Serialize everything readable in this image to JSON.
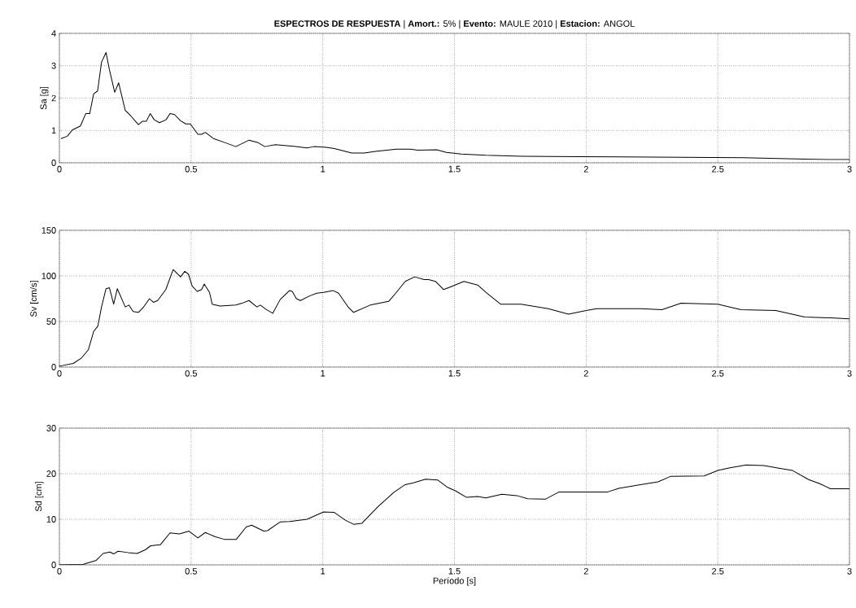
{
  "chart_data": [
    {
      "type": "line",
      "title": "**ESPECTROS DE RESPUESTA** |  **Amort.:** 5% |  **Evento:** MAULE 2010 |  **Estacion:** ANGOL",
      "ylabel": "Sa [g]",
      "grid": true,
      "xlim": [
        0,
        3
      ],
      "ylim": [
        0,
        4
      ],
      "xticks": [
        0,
        0.5,
        1,
        1.5,
        2,
        2.5,
        3
      ],
      "yticks": [
        0,
        1,
        2,
        3,
        4
      ],
      "color": "#000000",
      "x": [
        0.006,
        0.03,
        0.05,
        0.08,
        0.1,
        0.115,
        0.13,
        0.145,
        0.16,
        0.177,
        0.19,
        0.21,
        0.225,
        0.25,
        0.27,
        0.3,
        0.315,
        0.33,
        0.345,
        0.36,
        0.38,
        0.405,
        0.42,
        0.437,
        0.46,
        0.48,
        0.497,
        0.526,
        0.54,
        0.554,
        0.585,
        0.63,
        0.67,
        0.72,
        0.755,
        0.78,
        0.82,
        0.89,
        0.94,
        0.967,
        1.013,
        1.044,
        1.11,
        1.158,
        1.2,
        1.28,
        1.33,
        1.36,
        1.433,
        1.469,
        1.526,
        1.619,
        1.758,
        1.98,
        2.598,
        2.83,
        2.928,
        3
      ],
      "values": [
        0.75,
        0.82,
        1.02,
        1.14,
        1.52,
        1.52,
        2.13,
        2.22,
        3.11,
        3.41,
        2.87,
        2.18,
        2.47,
        1.62,
        1.46,
        1.18,
        1.28,
        1.28,
        1.52,
        1.33,
        1.24,
        1.33,
        1.52,
        1.49,
        1.3,
        1.2,
        1.2,
        0.88,
        0.88,
        0.94,
        0.75,
        0.62,
        0.5,
        0.7,
        0.62,
        0.5,
        0.56,
        0.51,
        0.46,
        0.5,
        0.48,
        0.44,
        0.3,
        0.3,
        0.35,
        0.42,
        0.42,
        0.39,
        0.4,
        0.32,
        0.27,
        0.23,
        0.2,
        0.19,
        0.16,
        0.11,
        0.1,
        0.1
      ]
    },
    {
      "type": "line",
      "ylabel": "Sv [cm/s]",
      "grid": true,
      "xlim": [
        0,
        3
      ],
      "ylim": [
        0,
        150
      ],
      "xticks": [
        0,
        0.5,
        1,
        1.5,
        2,
        2.5,
        3
      ],
      "yticks": [
        0,
        50,
        100,
        150
      ],
      "color": "#000000",
      "x": [
        0,
        0.053,
        0.084,
        0.11,
        0.13,
        0.146,
        0.16,
        0.177,
        0.19,
        0.206,
        0.22,
        0.25,
        0.264,
        0.28,
        0.3,
        0.32,
        0.342,
        0.357,
        0.373,
        0.404,
        0.432,
        0.46,
        0.476,
        0.49,
        0.504,
        0.523,
        0.54,
        0.55,
        0.57,
        0.58,
        0.61,
        0.67,
        0.693,
        0.72,
        0.75,
        0.763,
        0.786,
        0.81,
        0.838,
        0.874,
        0.884,
        0.9,
        0.915,
        0.95,
        0.977,
        1.003,
        1.039,
        1.06,
        1.096,
        1.117,
        1.18,
        1.215,
        1.25,
        1.277,
        1.313,
        1.349,
        1.385,
        1.402,
        1.428,
        1.459,
        1.485,
        1.536,
        1.588,
        1.624,
        1.675,
        1.753,
        1.856,
        1.933,
        2.0,
        2.04,
        2.206,
        2.288,
        2.36,
        2.5,
        2.588,
        2.72,
        2.83,
        2.928,
        3
      ],
      "values": [
        1,
        4,
        10,
        19,
        39,
        45,
        66,
        86,
        87,
        69,
        86,
        66,
        68,
        61,
        60,
        66,
        75,
        71,
        73,
        85,
        107,
        99,
        105,
        102,
        89,
        83,
        85,
        91,
        82,
        69,
        67,
        68,
        70,
        73,
        66,
        68,
        63,
        59,
        74,
        84,
        83,
        75,
        73,
        78,
        81,
        82,
        84,
        81,
        66,
        60,
        68,
        70,
        72,
        81,
        94,
        99,
        96,
        96,
        94,
        85,
        88,
        94,
        90,
        81,
        69,
        69,
        64,
        58,
        62,
        64,
        64,
        63,
        70,
        69,
        63,
        62,
        55,
        54,
        53
      ]
    },
    {
      "type": "line",
      "ylabel": "Sd [cm]",
      "xlabel": "Período [s]",
      "grid": true,
      "xlim": [
        0,
        3
      ],
      "ylim": [
        0,
        30
      ],
      "xticks": [
        0,
        0.5,
        1,
        1.5,
        2,
        2.5,
        3
      ],
      "yticks": [
        0,
        10,
        20,
        30
      ],
      "color": "#000000",
      "x": [
        0,
        0.089,
        0.14,
        0.166,
        0.192,
        0.206,
        0.223,
        0.26,
        0.295,
        0.326,
        0.347,
        0.383,
        0.42,
        0.456,
        0.492,
        0.526,
        0.554,
        0.59,
        0.626,
        0.672,
        0.709,
        0.73,
        0.776,
        0.79,
        0.838,
        0.874,
        0.94,
        1.003,
        1.044,
        1.086,
        1.117,
        1.148,
        1.21,
        1.27,
        1.313,
        1.344,
        1.39,
        1.437,
        1.474,
        1.505,
        1.546,
        1.588,
        1.619,
        1.68,
        1.737,
        1.778,
        1.845,
        1.897,
        2.082,
        2.124,
        2.206,
        2.273,
        2.32,
        2.448,
        2.5,
        2.546,
        2.608,
        2.675,
        2.732,
        2.784,
        2.845,
        2.887,
        2.928,
        2.95,
        3
      ],
      "values": [
        0,
        0.1,
        1.0,
        2.5,
        2.8,
        2.4,
        3.0,
        2.7,
        2.5,
        3.3,
        4.2,
        4.4,
        7.0,
        6.8,
        7.4,
        5.9,
        7.1,
        6.2,
        5.6,
        5.6,
        8.3,
        8.7,
        7.4,
        7.5,
        9.4,
        9.5,
        10,
        11.6,
        11.5,
        9.8,
        8.9,
        9.1,
        12.8,
        15.9,
        17.6,
        18.0,
        18.8,
        18.6,
        17.0,
        16.2,
        14.8,
        15.0,
        14.7,
        15.5,
        15.2,
        14.5,
        14.4,
        16.0,
        16.0,
        16.8,
        17.6,
        18.2,
        19.4,
        19.5,
        20.7,
        21.3,
        21.9,
        21.8,
        21.2,
        20.7,
        18.7,
        17.8,
        16.7,
        16.7,
        16.7
      ]
    }
  ]
}
